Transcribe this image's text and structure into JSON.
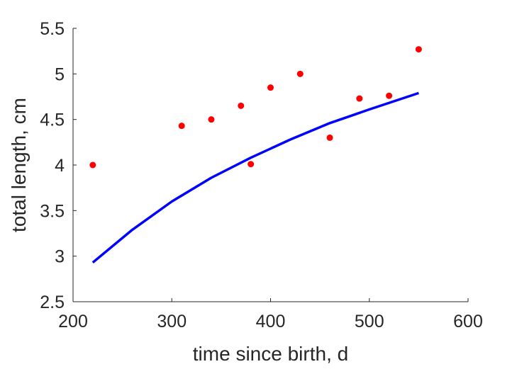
{
  "chart_data": {
    "type": "scatter",
    "xlabel": "time since birth, d",
    "ylabel": "total length, cm",
    "xlim": [
      200,
      600
    ],
    "ylim": [
      2.5,
      5.5
    ],
    "xticks": [
      200,
      300,
      400,
      500,
      600
    ],
    "yticks": [
      2.5,
      3,
      3.5,
      4,
      4.5,
      5,
      5.5
    ],
    "xtick_labels": [
      "200",
      "300",
      "400",
      "500",
      "600"
    ],
    "ytick_labels": [
      "2.5",
      "3",
      "3.5",
      "4",
      "4.5",
      "5",
      "5.5"
    ],
    "grid": false,
    "series": [
      {
        "type": "scatter",
        "color": "#ff0000",
        "x": [
          220,
          310,
          340,
          370,
          380,
          400,
          430,
          460,
          490,
          520,
          550
        ],
        "y": [
          4.0,
          4.43,
          4.5,
          4.65,
          4.01,
          4.85,
          5.0,
          4.3,
          4.73,
          4.76,
          5.27
        ]
      },
      {
        "type": "line",
        "color": "#0000ff",
        "x": [
          220,
          260,
          300,
          340,
          380,
          420,
          460,
          500,
          550
        ],
        "y": [
          2.93,
          3.29,
          3.6,
          3.86,
          4.08,
          4.28,
          4.46,
          4.61,
          4.79
        ]
      }
    ]
  }
}
